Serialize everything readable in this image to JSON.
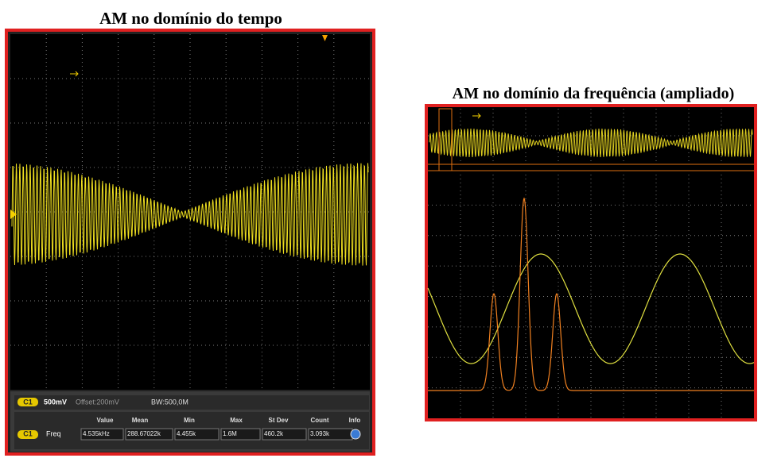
{
  "left_panel": {
    "title": "AM no domínio do tempo",
    "channel_bar": {
      "channel": "C1",
      "scale": "500mV",
      "offset": "Offset:200mV",
      "bandwidth": "BW:500,0M"
    },
    "measurements": {
      "headers": [
        "Value",
        "Mean",
        "Min",
        "Max",
        "St Dev",
        "Count",
        "Info"
      ],
      "rows": [
        {
          "channel": "C1",
          "name": "Freq",
          "cells": [
            "4.535kHz",
            "288.67022k",
            "4.455k",
            "1.6M",
            "460.2k",
            "3.093k"
          ]
        }
      ]
    }
  },
  "right_panel": {
    "title": "AM no domínio da frequência (ampliado)"
  }
}
